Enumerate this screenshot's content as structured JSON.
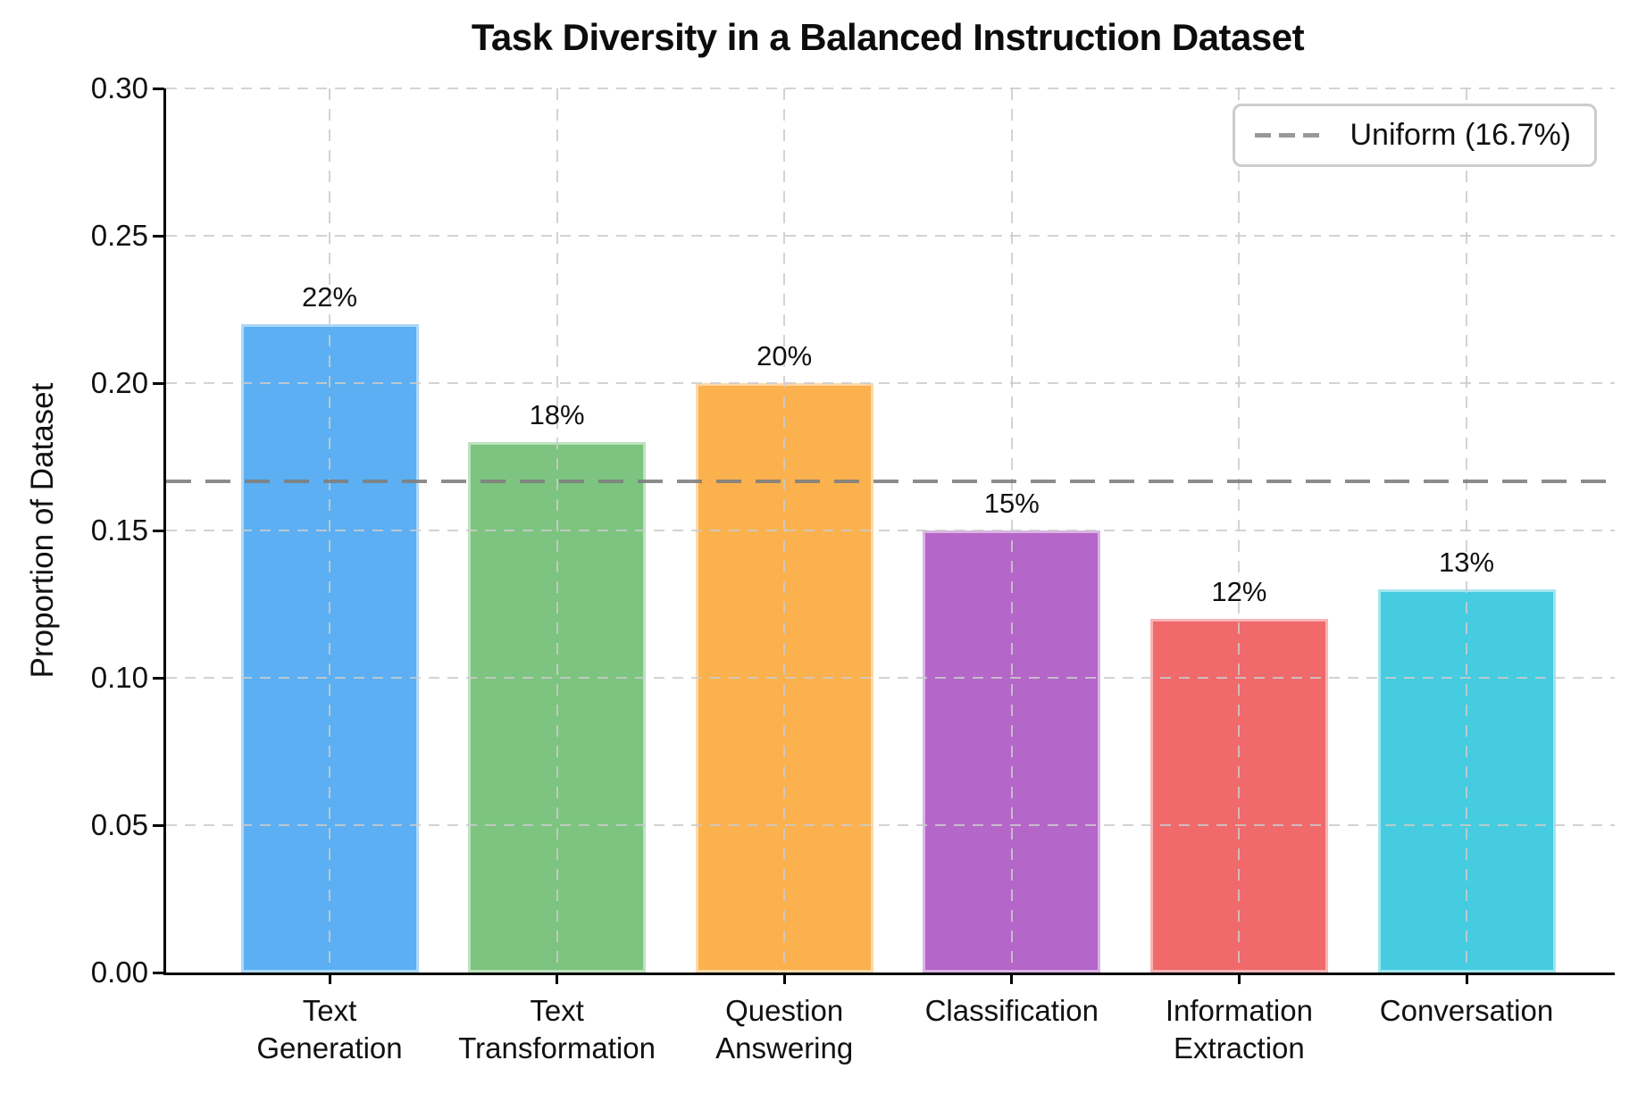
{
  "figure": {
    "background": "#ffffff"
  },
  "chart_data": {
    "type": "bar",
    "title": "Task Diversity in a Balanced Instruction Dataset",
    "ylabel": "Proportion of Dataset",
    "xlabel": "",
    "categories": [
      "Text\nGeneration",
      "Text\nTransformation",
      "Question\nAnswering",
      "Classification",
      "Information\nExtraction",
      "Conversation"
    ],
    "values": [
      0.22,
      0.18,
      0.2,
      0.15,
      0.12,
      0.13
    ],
    "bar_value_labels": [
      "22%",
      "18%",
      "20%",
      "15%",
      "12%",
      "13%"
    ],
    "bar_colors": [
      "#5BAFF2",
      "#7CC47F",
      "#FAB14E",
      "#B566C9",
      "#F0696B",
      "#45CCE0"
    ],
    "ylim": [
      0,
      0.3
    ],
    "yticks": [
      0.0,
      0.05,
      0.1,
      0.15,
      0.2,
      0.25,
      0.3
    ],
    "ytick_labels": [
      "0.00",
      "0.05",
      "0.10",
      "0.15",
      "0.20",
      "0.25",
      "0.30"
    ],
    "grid": true,
    "grid_style": "dashed",
    "reference_line": {
      "value": 0.1667,
      "label": "Uniform (16.7%)",
      "color": "#7f7f7f",
      "style": "dashed"
    },
    "legend": {
      "position": "upper right",
      "entries": [
        "Uniform (16.7%)"
      ]
    }
  },
  "colors": {
    "axis": "#000000",
    "grid": "#cbcbcb",
    "legend_border": "#cccccc",
    "text": "#111111"
  }
}
